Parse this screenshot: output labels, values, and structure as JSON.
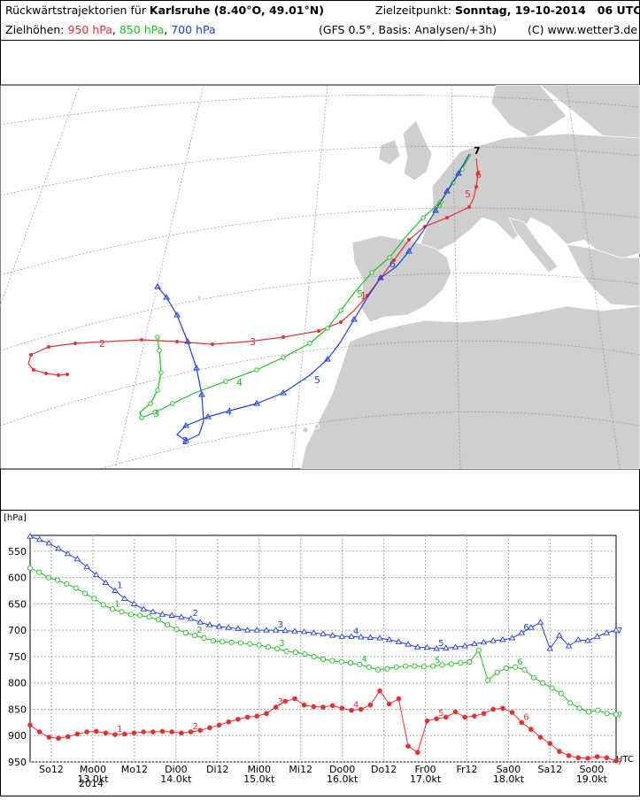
{
  "header": {
    "title_prefix": "Rückwärtstrajektorien für",
    "location": "Karlsruhe (8.40°O, 49.01°N)",
    "target_label": "Zielzeitpunkt:",
    "target_time": "Sonntag, 19-10-2014   06 UTC",
    "levels_label": "Zielhöhen:",
    "levels": [
      {
        "label": "950 hPa",
        "color": "#e83030"
      },
      {
        "label": "850 hPa",
        "color": "#20c020"
      },
      {
        "label": "700 hPa",
        "color": "#2040e0"
      }
    ],
    "model_info": "(GFS 0.5°, Basis: Analysen/+3h)",
    "copyright": "(C) www.wetter3.de"
  },
  "map": {
    "trajectory_labels": {
      "red": [
        "1",
        "2",
        "3",
        "4",
        "5",
        "6"
      ],
      "green": [
        "1",
        "2",
        "3",
        "4",
        "5",
        "6"
      ],
      "blue": [
        "1",
        "2",
        "3",
        "4",
        "5",
        "6"
      ],
      "end": "7"
    }
  },
  "chart_data": {
    "type": "line",
    "ylabel": "[hPa]",
    "y_ticks": [
      "550",
      "600",
      "650",
      "700",
      "750",
      "800",
      "850",
      "900",
      "950"
    ],
    "ylim": [
      950,
      520
    ],
    "x_tick_labels": [
      {
        "top": "So12",
        "bottom": ""
      },
      {
        "top": "Mo00",
        "bottom": "13.0kt"
      },
      {
        "top": "Mo12",
        "bottom": ""
      },
      {
        "top": "Di00",
        "bottom": "14.0kt"
      },
      {
        "top": "Di12",
        "bottom": ""
      },
      {
        "top": "Mi00",
        "bottom": "15.0kt"
      },
      {
        "top": "Mi12",
        "bottom": ""
      },
      {
        "top": "Do00",
        "bottom": "16.0kt"
      },
      {
        "top": "Do12",
        "bottom": ""
      },
      {
        "top": "Fr00",
        "bottom": "17.0kt"
      },
      {
        "top": "Fr12",
        "bottom": ""
      },
      {
        "top": "Sa00",
        "bottom": "18.0kt"
      },
      {
        "top": "Sa12",
        "bottom": ""
      },
      {
        "top": "So00",
        "bottom": "19.0kt"
      }
    ],
    "year_label": "2014",
    "x_unit": "UTC",
    "grid": true,
    "series": [
      {
        "name": "700 hPa",
        "color": "#2040e0",
        "marker": "triangle",
        "values": [
          522,
          528,
          535,
          545,
          555,
          565,
          580,
          595,
          610,
          625,
          640,
          650,
          660,
          665,
          670,
          672,
          675,
          678,
          685,
          690,
          693,
          695,
          697,
          700,
          700,
          700,
          700,
          701,
          702,
          703,
          705,
          707,
          710,
          712,
          712,
          713,
          714,
          715,
          718,
          722,
          727,
          732,
          733,
          735,
          734,
          732,
          730,
          726,
          723,
          720,
          718,
          715,
          705,
          695,
          685,
          735,
          710,
          730,
          718,
          720,
          712,
          705,
          700
        ]
      },
      {
        "name": "850 hPa",
        "color": "#20c020",
        "marker": "circle",
        "values": [
          582,
          590,
          600,
          605,
          612,
          620,
          630,
          640,
          652,
          660,
          665,
          670,
          672,
          675,
          680,
          690,
          698,
          705,
          710,
          715,
          720,
          722,
          723,
          724,
          726,
          728,
          732,
          735,
          740,
          742,
          745,
          750,
          755,
          758,
          760,
          762,
          765,
          770,
          775,
          773,
          770,
          768,
          768,
          769,
          768,
          766,
          764,
          762,
          760,
          738,
          795,
          780,
          772,
          770,
          775,
          790,
          800,
          810,
          820,
          838,
          848,
          855,
          852,
          858,
          860
        ]
      },
      {
        "name": "950 hPa",
        "color": "#e83030",
        "marker": "dot",
        "values": [
          880,
          893,
          903,
          905,
          902,
          897,
          893,
          892,
          895,
          898,
          897,
          895,
          893,
          893,
          892,
          893,
          895,
          893,
          890,
          885,
          880,
          874,
          869,
          865,
          863,
          858,
          846,
          835,
          830,
          842,
          845,
          846,
          843,
          848,
          852,
          850,
          842,
          815,
          840,
          830,
          920,
          932,
          872,
          868,
          865,
          855,
          865,
          863,
          858,
          850,
          848,
          856,
          875,
          888,
          903,
          915,
          930,
          938,
          942,
          943,
          940,
          942,
          948
        ]
      }
    ],
    "series_labels": [
      "1",
      "2",
      "3",
      "4",
      "5",
      "6",
      "7"
    ]
  }
}
